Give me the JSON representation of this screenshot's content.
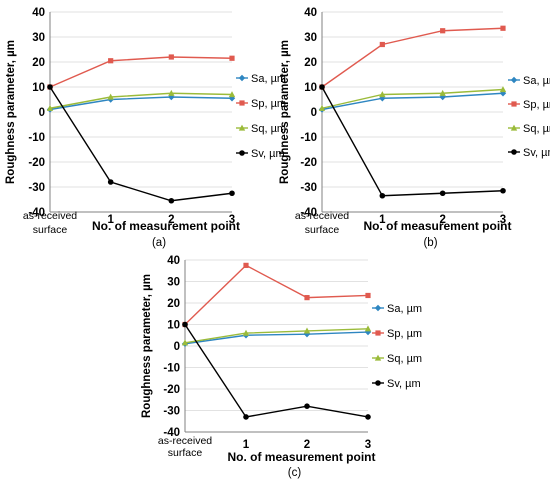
{
  "colors": {
    "Sa, µm": "#2e86c1",
    "Sp, µm": "#e05a4f",
    "Sq, µm": "#9bbb3a",
    "Sv, µm": "#000000",
    "grid": "#d9d9d9",
    "axis": "#808080"
  },
  "chart_data": [
    {
      "type": "line",
      "panel_label": "(a)",
      "xlabel": "No. of measurement point",
      "ylabel": "Roughness parameter, µm",
      "categories": [
        "as-received\nsurface",
        "1",
        "2",
        "3"
      ],
      "ylim": [
        -40,
        40
      ],
      "yticks": [
        -40,
        -30,
        -20,
        -10,
        0,
        10,
        20,
        30,
        40
      ],
      "grid": "horizontal",
      "legend": "right",
      "series": [
        {
          "name": "Sa, µm",
          "marker": "diamond",
          "values": [
            1,
            5,
            6,
            5.5
          ]
        },
        {
          "name": "Sp, µm",
          "marker": "square",
          "values": [
            10,
            20.5,
            22,
            21.5
          ]
        },
        {
          "name": "Sq, µm",
          "marker": "triangle",
          "values": [
            1.5,
            6,
            7.5,
            7
          ]
        },
        {
          "name": "Sv, µm",
          "marker": "circle",
          "values": [
            10,
            -28,
            -35.5,
            -32.5
          ]
        }
      ]
    },
    {
      "type": "line",
      "panel_label": "(b)",
      "xlabel": "No. of measurement point",
      "ylabel": "Roughness parameter, µm",
      "categories": [
        "as-received\nsurface",
        "1",
        "2",
        "3"
      ],
      "ylim": [
        -40,
        40
      ],
      "yticks": [
        -40,
        -30,
        -20,
        -10,
        0,
        10,
        20,
        30,
        40
      ],
      "grid": "horizontal",
      "legend": "right",
      "series": [
        {
          "name": "Sa, µm",
          "marker": "diamond",
          "values": [
            1,
            5.5,
            6,
            7.5
          ]
        },
        {
          "name": "Sp, µm",
          "marker": "square",
          "values": [
            10,
            27,
            32.5,
            33.5
          ]
        },
        {
          "name": "Sq, µm",
          "marker": "triangle",
          "values": [
            1.5,
            7,
            7.5,
            9
          ]
        },
        {
          "name": "Sv, µm",
          "marker": "circle",
          "values": [
            10,
            -33.5,
            -32.5,
            -31.5
          ]
        }
      ]
    },
    {
      "type": "line",
      "panel_label": "(c)",
      "xlabel": "No. of measurement point",
      "ylabel": "Roughness parameter, µm",
      "categories": [
        "as-received\nsurface",
        "1",
        "2",
        "3"
      ],
      "ylim": [
        -40,
        40
      ],
      "yticks": [
        -40,
        -30,
        -20,
        -10,
        0,
        10,
        20,
        30,
        40
      ],
      "grid": "horizontal",
      "legend": "right",
      "series": [
        {
          "name": "Sa, µm",
          "marker": "diamond",
          "values": [
            1,
            5,
            5.5,
            6.5
          ]
        },
        {
          "name": "Sp, µm",
          "marker": "square",
          "values": [
            10,
            37.5,
            22.5,
            23.5
          ]
        },
        {
          "name": "Sq, µm",
          "marker": "triangle",
          "values": [
            1.5,
            6,
            7,
            8
          ]
        },
        {
          "name": "Sv, µm",
          "marker": "circle",
          "values": [
            10,
            -33,
            -28,
            -33
          ]
        }
      ]
    }
  ]
}
